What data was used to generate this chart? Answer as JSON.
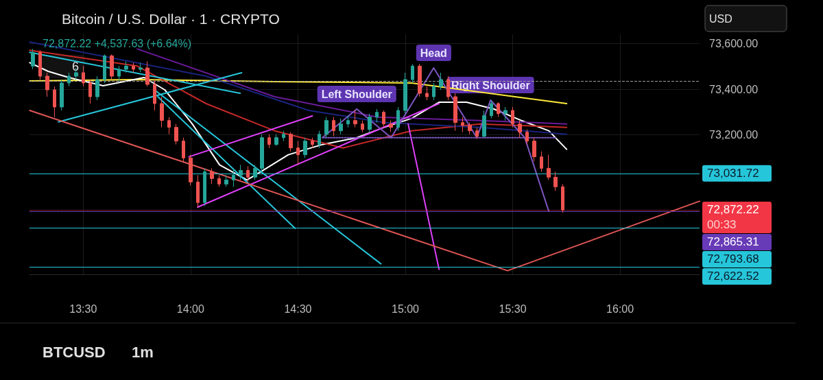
{
  "chart_data": {
    "type": "candlestick",
    "title": "Bitcoin / U.S. Dollar · 1 · CRYPTO",
    "subtitle": "72,872.22 +4,537.63 (+6.64%)",
    "x": [
      13.2667,
      13.3,
      13.3333,
      13.3667,
      13.4,
      13.4333,
      13.4667,
      13.5,
      13.5333,
      13.5667,
      13.6,
      13.6333,
      13.6667,
      13.7,
      13.7333,
      13.7667,
      13.8,
      13.8333,
      13.8667,
      13.9,
      13.9333,
      13.9667,
      14,
      14.0333,
      14.0667,
      14.1,
      14.1333,
      14.1667,
      14.2,
      14.2333,
      14.2667,
      14.3,
      14.3333,
      14.3667,
      14.4,
      14.4333,
      14.4667,
      14.5,
      14.5333,
      14.5667,
      14.6,
      14.6333,
      14.6667,
      14.7,
      14.7333,
      14.7667,
      14.8,
      14.8333,
      14.8667,
      14.9,
      14.9333,
      14.9667,
      15,
      15.0333,
      15.0667,
      15.1,
      15.1333,
      15.1667,
      15.2,
      15.2333,
      15.2667,
      15.3,
      15.3333,
      15.3667,
      15.4,
      15.4333,
      15.4667,
      15.5,
      15.5333,
      15.5667,
      15.6,
      15.6333,
      15.6667,
      15.7,
      15.7333
    ],
    "ohlc": [
      [
        73501,
        73576,
        73487,
        73561
      ],
      [
        73561,
        73570,
        73442,
        73457
      ],
      [
        73457,
        73472,
        73367,
        73397
      ],
      [
        73397,
        73412,
        73278,
        73322
      ],
      [
        73322,
        73442,
        73307,
        73427
      ],
      [
        73427,
        73472,
        73412,
        73457
      ],
      [
        73457,
        73493,
        73442,
        73472
      ],
      [
        73472,
        73501,
        73412,
        73427
      ],
      [
        73427,
        73442,
        73337,
        73367
      ],
      [
        73367,
        73457,
        73352,
        73442
      ],
      [
        73442,
        73552,
        73427,
        73546
      ],
      [
        73546,
        73552,
        73442,
        73457
      ],
      [
        73457,
        73501,
        73433,
        73487
      ],
      [
        73487,
        73522,
        73472,
        73501
      ],
      [
        73501,
        73516,
        73472,
        73487
      ],
      [
        73487,
        73516,
        73475,
        73493
      ],
      [
        73493,
        73522,
        73412,
        73421
      ],
      [
        73421,
        73442,
        73307,
        73337
      ],
      [
        73337,
        73367,
        73233,
        73263
      ],
      [
        73263,
        73278,
        73203,
        73233
      ],
      [
        73233,
        73248,
        73158,
        73173
      ],
      [
        73173,
        73188,
        73084,
        73099
      ],
      [
        73099,
        73113,
        72979,
        72994
      ],
      [
        72994,
        73024,
        72884,
        72904
      ],
      [
        72904,
        73054,
        72890,
        73039
      ],
      [
        73039,
        73054,
        72985,
        73009
      ],
      [
        73009,
        73024,
        72973,
        72985
      ],
      [
        72985,
        73024,
        72973,
        73003
      ],
      [
        73003,
        73054,
        72973,
        73024
      ],
      [
        73024,
        73069,
        73003,
        73045
      ],
      [
        73045,
        73063,
        72994,
        73015
      ],
      [
        73015,
        73069,
        73003,
        73054
      ],
      [
        73054,
        73203,
        73039,
        73188
      ],
      [
        73188,
        73203,
        73143,
        73158
      ],
      [
        73158,
        73203,
        73152,
        73188
      ],
      [
        73188,
        73218,
        73173,
        73203
      ],
      [
        73203,
        73212,
        73128,
        73143
      ],
      [
        73143,
        73173,
        73069,
        73113
      ],
      [
        73113,
        73188,
        73099,
        73173
      ],
      [
        73173,
        73188,
        73143,
        73158
      ],
      [
        73158,
        73218,
        73143,
        73203
      ],
      [
        73203,
        73278,
        73188,
        73263
      ],
      [
        73263,
        73278,
        73194,
        73218
      ],
      [
        73218,
        73272,
        73203,
        73248
      ],
      [
        73248,
        73284,
        73233,
        73263
      ],
      [
        73263,
        73307,
        73233,
        73248
      ],
      [
        73248,
        73263,
        73212,
        73224
      ],
      [
        73224,
        73293,
        73212,
        73278
      ],
      [
        73278,
        73313,
        73254,
        73299
      ],
      [
        73299,
        73307,
        73233,
        73248
      ],
      [
        73248,
        73263,
        73212,
        73233
      ],
      [
        73233,
        73322,
        73218,
        73307
      ],
      [
        73307,
        73472,
        73293,
        73442
      ],
      [
        73442,
        73510,
        73427,
        73501
      ],
      [
        73501,
        73510,
        73367,
        73382
      ],
      [
        73382,
        73412,
        73352,
        73367
      ],
      [
        73367,
        73427,
        73352,
        73412
      ],
      [
        73412,
        73472,
        73397,
        73442
      ],
      [
        73442,
        73457,
        73352,
        73367
      ],
      [
        73367,
        73382,
        73218,
        73254
      ],
      [
        73254,
        73278,
        73212,
        73242
      ],
      [
        73242,
        73254,
        73203,
        73218
      ],
      [
        73218,
        73233,
        73182,
        73194
      ],
      [
        73194,
        73307,
        73188,
        73284
      ],
      [
        73284,
        73352,
        73272,
        73337
      ],
      [
        73337,
        73343,
        73278,
        73293
      ],
      [
        73293,
        73322,
        73263,
        73307
      ],
      [
        73307,
        73322,
        73233,
        73248
      ],
      [
        73248,
        73263,
        73188,
        73212
      ],
      [
        73212,
        73224,
        73158,
        73173
      ],
      [
        73173,
        73188,
        73084,
        73104
      ],
      [
        73104,
        73128,
        73039,
        73054
      ],
      [
        73054,
        73113,
        73003,
        73015
      ],
      [
        73015,
        73039,
        72955,
        72973
      ],
      [
        72973,
        72985,
        72860,
        72872.22
      ]
    ],
    "series": [
      {
        "type": "line",
        "color": "#ffeb3b",
        "x": [
          13.251,
          13.752,
          14.391,
          15.029,
          15.751
        ],
        "values": [
          73436,
          73442,
          73433,
          73427,
          73337
        ]
      },
      {
        "type": "line",
        "color": "#ffffff",
        "x": [
          13.251,
          13.337,
          13.433,
          13.593,
          13.784,
          13.88,
          14.008,
          14.135,
          14.263,
          14.327,
          14.455,
          14.614,
          14.774,
          14.902,
          15.029,
          15.157,
          15.285,
          15.413,
          15.54,
          15.668,
          15.751
        ],
        "values": [
          73516,
          73478,
          73451,
          73415,
          73451,
          73397,
          73248,
          73069,
          73003,
          73039,
          73113,
          73158,
          73188,
          73233,
          73272,
          73343,
          73343,
          73313,
          73263,
          73218,
          73137
        ]
      },
      {
        "type": "line",
        "color": "#c62828",
        "x": [
          13.251,
          13.752,
          14.072,
          14.391,
          14.71,
          15.029,
          15.349,
          15.751
        ],
        "values": [
          73570,
          73501,
          73337,
          73218,
          73143,
          73218,
          73248,
          73233
        ]
      },
      {
        "type": "line",
        "color": "#1a237e",
        "x": [
          13.251,
          14.072,
          14.55,
          14.902,
          15.349,
          15.751
        ],
        "values": [
          73606,
          73457,
          73307,
          73254,
          73233,
          73203
        ]
      },
      {
        "type": "line",
        "color": "#6a1b9a",
        "x": [
          13.752,
          14.391,
          14.87,
          15.349,
          15.751
        ],
        "values": [
          73576,
          73367,
          73278,
          73263,
          73248
        ]
      },
      {
        "type": "line",
        "color": "#26c6da",
        "x": [
          13.251,
          14.231
        ],
        "values": [
          73561,
          73382
        ]
      },
      {
        "type": "line",
        "color": "#26c6da",
        "x": [
          13.385,
          14.238
        ],
        "values": [
          73257,
          73472
        ]
      },
      {
        "type": "line",
        "color": "#26c6da",
        "x": [
          13.848,
          14.487
        ],
        "values": [
          73367,
          72791
        ]
      },
      {
        "type": "line",
        "color": "#26c6da",
        "x": [
          13.832,
          14.886
        ],
        "values": [
          73397,
          72636
        ]
      },
      {
        "type": "line",
        "color": "#e040fb",
        "x": [
          13.992,
          14.567
        ],
        "values": [
          73104,
          73283
        ]
      },
      {
        "type": "line",
        "color": "#e040fb",
        "x": [
          14.033,
          15.157
        ],
        "values": [
          72884,
          73337
        ]
      },
      {
        "type": "line",
        "color": "#e040fb",
        "x": [
          15.013,
          15.157
        ],
        "values": [
          73248,
          72612
        ]
      },
      {
        "type": "line",
        "color": "#e05555",
        "x": [
          13.251,
          15.476,
          16.37
        ],
        "values": [
          73307,
          72606,
          72910
        ]
      },
      {
        "type": "line",
        "color": "#7e57c2",
        "x": [
          14.614,
          14.774,
          14.934,
          15.132,
          15.333,
          15.397,
          15.556,
          15.668
        ],
        "values": [
          73188,
          73313,
          73188,
          73493,
          73188,
          73352,
          73188,
          72866
        ]
      },
      {
        "type": "line",
        "color": "#7e57c2",
        "line_style": "dotted",
        "x": [
          14.614,
          15.7
        ],
        "values": [
          73188,
          73188
        ]
      }
    ],
    "xlim": [
      13.25,
      16.37
    ],
    "xticks": [
      {
        "value": 13.5,
        "label": "13:30"
      },
      {
        "value": 14,
        "label": "14:00"
      },
      {
        "value": 14.5,
        "label": "14:30"
      },
      {
        "value": 15,
        "label": "15:00"
      },
      {
        "value": 15.5,
        "label": "15:30"
      },
      {
        "value": 16,
        "label": "16:00"
      }
    ],
    "ylim": [
      72590,
      73640
    ],
    "yticks": [
      {
        "value": 73200,
        "label": "73,200.00"
      },
      {
        "value": 73400,
        "label": "73,400.00"
      },
      {
        "value": 73600,
        "label": "73,600.00"
      }
    ],
    "ref_lines": [
      {
        "axis": "y",
        "value": 73435,
        "color": "#9e9e9e",
        "line_style": "dashed"
      },
      {
        "axis": "y",
        "value": 73031.72,
        "label": "73,031.72",
        "color": "#26c6da"
      },
      {
        "axis": "y",
        "value": 72872.22,
        "label": "72,872.22",
        "color": "#f23645",
        "line_style": "dotted"
      },
      {
        "axis": "y",
        "value": 72865.31,
        "label": "72,865.31",
        "color": "#673ab7"
      },
      {
        "axis": "y",
        "value": 72793.68,
        "label": "72,793.68",
        "color": "#26c6da"
      },
      {
        "axis": "y",
        "value": 72622.52,
        "label": "72,622.52",
        "color": "#26c6da"
      }
    ],
    "annotations": [
      {
        "text": "Head",
        "x": 15.132,
        "y": 73493
      },
      {
        "text": "Left Shoulder",
        "x": 14.774,
        "y": 73313
      },
      {
        "text": "Right Shoulder",
        "x": 15.397,
        "y": 73352
      },
      "00:33",
      "6",
      "USD",
      "BTCUSD",
      "1m"
    ],
    "grid": true,
    "marker": "none"
  }
}
